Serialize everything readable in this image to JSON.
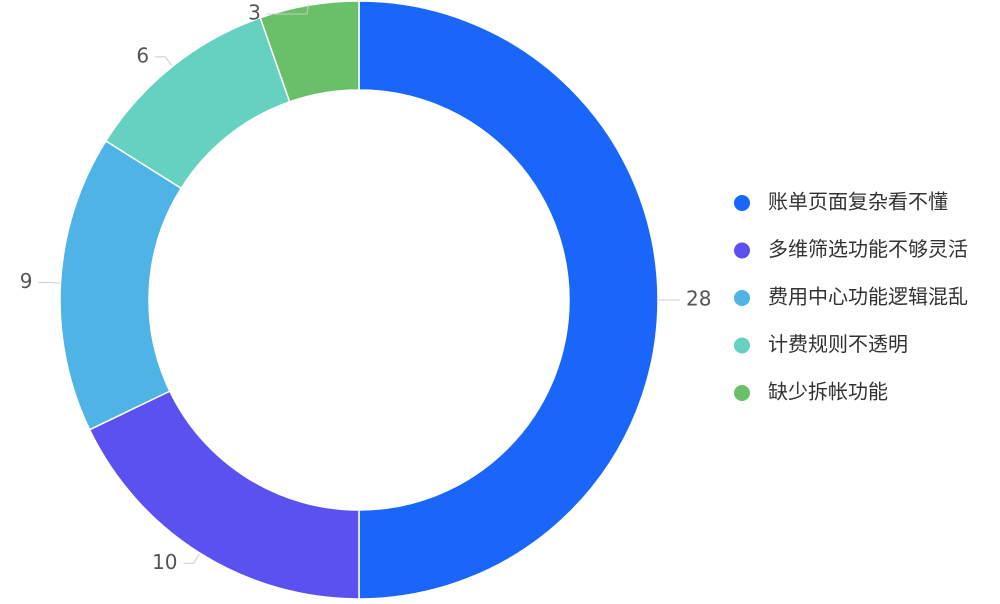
{
  "chart_data": {
    "type": "donut",
    "categories": [
      "账单页面复杂看不懂",
      "多维筛选功能不够灵活",
      "费用中心功能逻辑混乱",
      "计费规则不透明",
      "缺少拆帐功能"
    ],
    "values": [
      28,
      10,
      9,
      6,
      3
    ],
    "colors": [
      "#1a66fa",
      "#5b50f0",
      "#4fb3e6",
      "#66d1c1",
      "#6abf69"
    ],
    "legend": "right"
  }
}
